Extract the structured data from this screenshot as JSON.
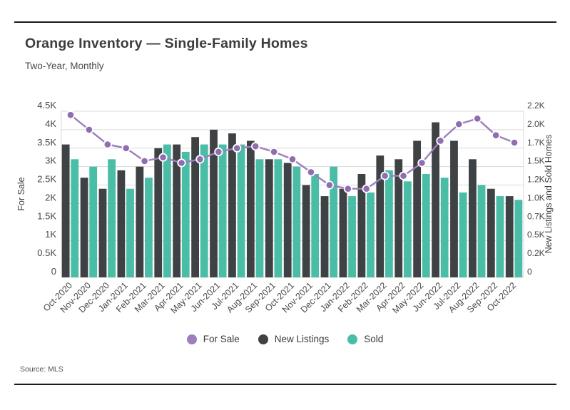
{
  "header": {
    "title": "Orange Inventory — Single-Family Homes",
    "subtitle": "Two-Year, Monthly"
  },
  "source": "Source: MLS",
  "colors": {
    "rule": "#1a1a1a",
    "grid": "#d9d9d9",
    "tick_text": "#474747",
    "axis_title_text": "#3f3f3f",
    "x_label_text": "#4a4a4a",
    "purple_line": "#9d7fbd",
    "purple_marker": "#8f6db0",
    "charcoal_bar": "#3f4244",
    "teal_bar": "#49bda6"
  },
  "chart_data": {
    "type": "combo-bar-line",
    "categories": [
      "Oct-2020",
      "Nov-2020",
      "Dec-2020",
      "Jan-2021",
      "Feb-2021",
      "Mar-2021",
      "Apr-2021",
      "May-2021",
      "Jun-2021",
      "Jul-2021",
      "Aug-2021",
      "Sep-2021",
      "Oct-2021",
      "Nov-2021",
      "Dec-2021",
      "Jan-2022",
      "Feb-2022",
      "Mar-2022",
      "Apr-2022",
      "May-2022",
      "Jun-2022",
      "Jul-2022",
      "Aug-2022",
      "Sep-2022",
      "Oct-2022"
    ],
    "series": [
      {
        "name": "For Sale",
        "type": "line",
        "axis": "left",
        "color": "#9d7fbd",
        "marker_color": "#8f6db0",
        "values": [
          4400,
          4000,
          3600,
          3500,
          3150,
          3250,
          3100,
          3200,
          3400,
          3500,
          3550,
          3400,
          3200,
          2850,
          2500,
          2400,
          2400,
          2750,
          2750,
          3100,
          3700,
          4150,
          4300,
          3850,
          3650
        ]
      },
      {
        "name": "New Listings",
        "type": "bar",
        "axis": "right",
        "color": "#3f4244",
        "values": [
          1800,
          1350,
          1200,
          1450,
          1500,
          1750,
          1800,
          1900,
          2000,
          1950,
          1850,
          1600,
          1550,
          1250,
          1100,
          1200,
          1400,
          1650,
          1600,
          1850,
          2100,
          1850,
          1600,
          1200,
          1100
        ]
      },
      {
        "name": "Sold",
        "type": "bar",
        "axis": "right",
        "color": "#49bda6",
        "values": [
          1600,
          1500,
          1600,
          1200,
          1350,
          1800,
          1700,
          1800,
          1800,
          1800,
          1600,
          1600,
          1500,
          1400,
          1500,
          1100,
          1150,
          1450,
          1300,
          1400,
          1350,
          1150,
          1250,
          1100,
          1050
        ]
      }
    ],
    "left_axis": {
      "title": "For Sale",
      "min": 0,
      "max": 4500,
      "tick_step": 500,
      "tick_labels": [
        "0",
        "0.5K",
        "1K",
        "1.5K",
        "2K",
        "2.5K",
        "3K",
        "3.5K",
        "4K",
        "4.5K"
      ]
    },
    "right_axis": {
      "title": "New Listings and Sold Homes",
      "min": 0,
      "max": 2250,
      "tick_step": 250,
      "tick_labels": [
        "0",
        "0.2K",
        "0.5K",
        "0.7K",
        "1.0K",
        "1.2K",
        "1.5K",
        "1.7K",
        "2.0K",
        "2.2K"
      ]
    },
    "grid": true,
    "legend_position": "bottom"
  }
}
